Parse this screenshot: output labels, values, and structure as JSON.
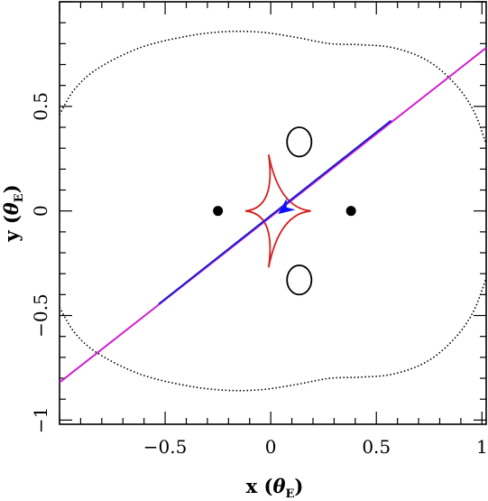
{
  "chart_data": {
    "type": "line",
    "xlabel": {
      "prefix": "x (",
      "symbol": "θ",
      "subscript": "E",
      "suffix": ")"
    },
    "ylabel": {
      "prefix": "y (",
      "symbol": "θ",
      "subscript": "E",
      "suffix": ")"
    },
    "xlim": [
      -1.0,
      1.02
    ],
    "ylim": [
      -1.02,
      1.0
    ],
    "xticks": [
      {
        "value": -0.5,
        "label": "−0.5"
      },
      {
        "value": 0,
        "label": "0"
      },
      {
        "value": 0.5,
        "label": "0.5"
      },
      {
        "value": 1,
        "label": "1"
      }
    ],
    "yticks": [
      {
        "value": -1,
        "label": "−1"
      },
      {
        "value": -0.5,
        "label": "−0.5"
      },
      {
        "value": 0,
        "label": "0"
      },
      {
        "value": 0.5,
        "label": "0.5"
      }
    ],
    "grid": false,
    "colors": {
      "caustic": "#d42020",
      "trajectory_full": "#d020d0",
      "trajectory_segment": "#1c1ccc",
      "arrow": "#1010ff",
      "curve": "#000000"
    },
    "lens_positions": [
      {
        "x": -0.25,
        "y": 0.0
      },
      {
        "x": 0.38,
        "y": 0.0
      }
    ],
    "critical_curve_outer": [
      {
        "x": -1.0,
        "y": 0.46
      },
      {
        "x": -0.93,
        "y": 0.58
      },
      {
        "x": -0.82,
        "y": 0.68
      },
      {
        "x": -0.62,
        "y": 0.78
      },
      {
        "x": -0.4,
        "y": 0.835
      },
      {
        "x": -0.22,
        "y": 0.857
      },
      {
        "x": -0.05,
        "y": 0.855
      },
      {
        "x": 0.12,
        "y": 0.83
      },
      {
        "x": 0.28,
        "y": 0.8
      },
      {
        "x": 0.42,
        "y": 0.795
      },
      {
        "x": 0.58,
        "y": 0.78
      },
      {
        "x": 0.74,
        "y": 0.72
      },
      {
        "x": 0.87,
        "y": 0.61
      },
      {
        "x": 0.96,
        "y": 0.48
      },
      {
        "x": 1.02,
        "y": 0.32
      }
    ],
    "critical_curve_outer_bottom": [
      {
        "x": -1.0,
        "y": -0.46
      },
      {
        "x": -0.93,
        "y": -0.58
      },
      {
        "x": -0.82,
        "y": -0.68
      },
      {
        "x": -0.62,
        "y": -0.78
      },
      {
        "x": -0.4,
        "y": -0.835
      },
      {
        "x": -0.22,
        "y": -0.857
      },
      {
        "x": -0.05,
        "y": -0.855
      },
      {
        "x": 0.12,
        "y": -0.83
      },
      {
        "x": 0.28,
        "y": -0.8
      },
      {
        "x": 0.42,
        "y": -0.795
      },
      {
        "x": 0.58,
        "y": -0.78
      },
      {
        "x": 0.74,
        "y": -0.72
      },
      {
        "x": 0.87,
        "y": -0.61
      },
      {
        "x": 0.96,
        "y": -0.48
      },
      {
        "x": 1.02,
        "y": -0.32
      }
    ],
    "critical_curve_small": [
      {
        "cx": 0.135,
        "cy": 0.33,
        "rx": 0.058,
        "ry": 0.07
      },
      {
        "cx": 0.135,
        "cy": -0.33,
        "rx": 0.058,
        "ry": 0.07
      }
    ],
    "caustic_cusps": [
      {
        "x": -0.12,
        "y": 0.0
      },
      {
        "x": -0.01,
        "y": 0.27
      },
      {
        "x": 0.19,
        "y": 0.0
      },
      {
        "x": -0.01,
        "y": -0.27
      }
    ],
    "trajectory_full": {
      "x": [
        -1.0,
        1.02
      ],
      "y": [
        -0.82,
        0.78
      ]
    },
    "trajectory_segment": {
      "x": [
        -0.53,
        0.57
      ],
      "y": [
        -0.445,
        0.432
      ]
    },
    "arrow": {
      "tip": {
        "x": 0.035,
        "y": -0.015
      },
      "angle_deg": 218
    }
  }
}
